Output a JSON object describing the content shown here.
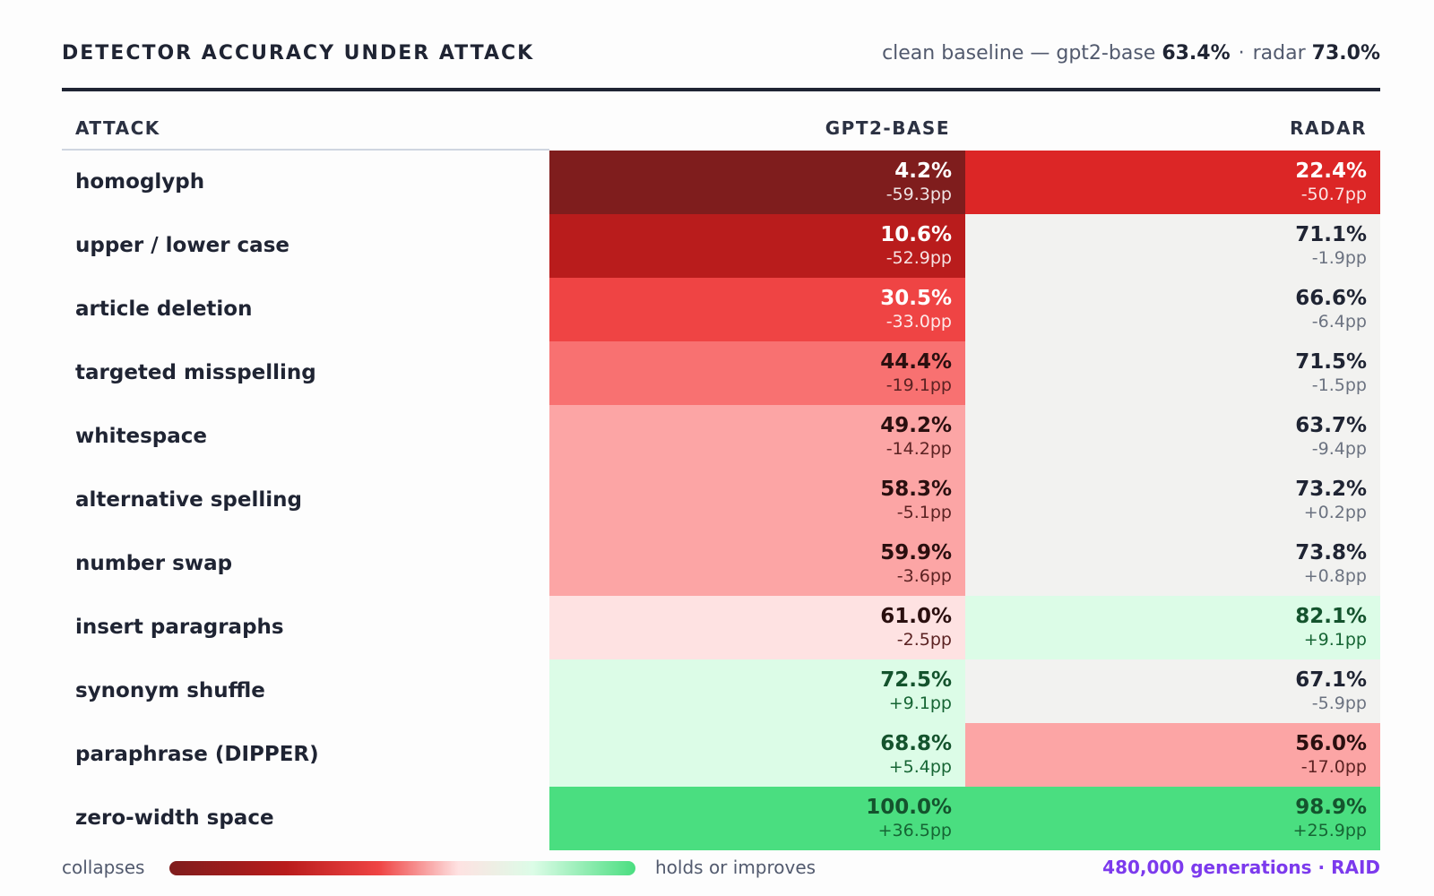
{
  "header": {
    "title": "DETECTOR ACCURACY UNDER ATTACK",
    "baseline_prefix": "clean baseline —",
    "baseline_gpt_label": "gpt2-base",
    "baseline_gpt_value": "63.4%",
    "baseline_sep": "·",
    "baseline_radar_label": "radar",
    "baseline_radar_value": "73.0%"
  },
  "columns": {
    "attack": "ATTACK",
    "gpt": "GPT2-BASE",
    "radar": "RADAR"
  },
  "legend": {
    "low_label": "collapses",
    "high_label": "holds or improves",
    "source": "480,000 generations · RAID"
  },
  "colors": {
    "severe": "#7f1d1d",
    "high": "#b91c1c",
    "strong": "#dc2626",
    "moderate": "#ef4444",
    "mild": "#f87171",
    "light": "#fca5a5",
    "faint": "#fee2e2",
    "neutral": "#f2f2f0",
    "gain_faint": "#dcfce7",
    "gain_strong": "#4ade80"
  },
  "chart_data": {
    "type": "table",
    "title": "DETECTOR ACCURACY UNDER ATTACK",
    "baseline": {
      "gpt2-base": 63.4,
      "radar": 73.0
    },
    "rows": [
      {
        "attack": "homoglyph",
        "gpt": {
          "value": "4.2%",
          "delta": "-59.3pp",
          "tone": "severe"
        },
        "radar": {
          "value": "22.4%",
          "delta": "-50.7pp",
          "tone": "strong"
        }
      },
      {
        "attack": "upper / lower case",
        "gpt": {
          "value": "10.6%",
          "delta": "-52.9pp",
          "tone": "high"
        },
        "radar": {
          "value": "71.1%",
          "delta": "-1.9pp",
          "tone": "neutral"
        }
      },
      {
        "attack": "article deletion",
        "gpt": {
          "value": "30.5%",
          "delta": "-33.0pp",
          "tone": "moderate"
        },
        "radar": {
          "value": "66.6%",
          "delta": "-6.4pp",
          "tone": "neutral"
        }
      },
      {
        "attack": "targeted misspelling",
        "gpt": {
          "value": "44.4%",
          "delta": "-19.1pp",
          "tone": "mild"
        },
        "radar": {
          "value": "71.5%",
          "delta": "-1.5pp",
          "tone": "neutral"
        }
      },
      {
        "attack": "whitespace",
        "gpt": {
          "value": "49.2%",
          "delta": "-14.2pp",
          "tone": "light"
        },
        "radar": {
          "value": "63.7%",
          "delta": "-9.4pp",
          "tone": "neutral"
        }
      },
      {
        "attack": "alternative spelling",
        "gpt": {
          "value": "58.3%",
          "delta": "-5.1pp",
          "tone": "light"
        },
        "radar": {
          "value": "73.2%",
          "delta": "+0.2pp",
          "tone": "neutral"
        }
      },
      {
        "attack": "number swap",
        "gpt": {
          "value": "59.9%",
          "delta": "-3.6pp",
          "tone": "light"
        },
        "radar": {
          "value": "73.8%",
          "delta": "+0.8pp",
          "tone": "neutral"
        }
      },
      {
        "attack": "insert paragraphs",
        "gpt": {
          "value": "61.0%",
          "delta": "-2.5pp",
          "tone": "faint"
        },
        "radar": {
          "value": "82.1%",
          "delta": "+9.1pp",
          "tone": "gain_faint"
        }
      },
      {
        "attack": "synonym shuffle",
        "gpt": {
          "value": "72.5%",
          "delta": "+9.1pp",
          "tone": "gain_faint"
        },
        "radar": {
          "value": "67.1%",
          "delta": "-5.9pp",
          "tone": "neutral"
        }
      },
      {
        "attack": "paraphrase (DIPPER)",
        "gpt": {
          "value": "68.8%",
          "delta": "+5.4pp",
          "tone": "gain_faint"
        },
        "radar": {
          "value": "56.0%",
          "delta": "-17.0pp",
          "tone": "light"
        }
      },
      {
        "attack": "zero-width space",
        "gpt": {
          "value": "100.0%",
          "delta": "+36.5pp",
          "tone": "gain_strong"
        },
        "radar": {
          "value": "98.9%",
          "delta": "+25.9pp",
          "tone": "gain_strong"
        }
      }
    ]
  }
}
